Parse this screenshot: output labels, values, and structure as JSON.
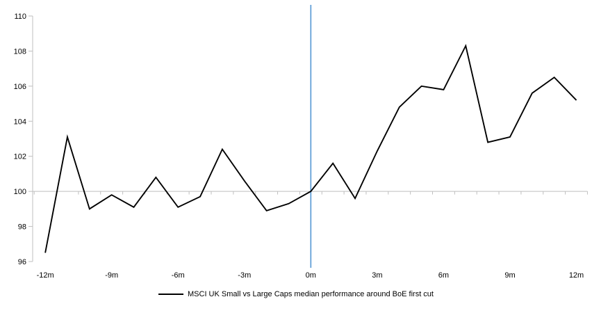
{
  "chart_data": {
    "type": "line",
    "title": "",
    "x": [
      -12,
      -11,
      -10,
      -9,
      -8,
      -7,
      -6,
      -5,
      -4,
      -3,
      -2,
      -1,
      0,
      1,
      2,
      3,
      4,
      5,
      6,
      7,
      8,
      9,
      10,
      11,
      12
    ],
    "series": [
      {
        "name": "MSCI UK Small vs Large Caps median performance around BoE first cut",
        "color": "#000000",
        "values": [
          96.5,
          103.1,
          99.0,
          99.8,
          99.1,
          100.8,
          99.1,
          99.7,
          102.4,
          100.6,
          98.9,
          99.3,
          100.0,
          101.6,
          99.6,
          102.3,
          104.8,
          106.0,
          105.8,
          108.3,
          102.8,
          103.1,
          105.6,
          106.5,
          105.2
        ]
      }
    ],
    "x_ticks": [
      {
        "m": -12,
        "label": "-12m"
      },
      {
        "m": -9,
        "label": "-9m"
      },
      {
        "m": -6,
        "label": "-6m"
      },
      {
        "m": -3,
        "label": "-3m"
      },
      {
        "m": 0,
        "label": "0m"
      },
      {
        "m": 3,
        "label": "3m"
      },
      {
        "m": 6,
        "label": "6m"
      },
      {
        "m": 9,
        "label": "9m"
      },
      {
        "m": 12,
        "label": "12m"
      }
    ],
    "y_ticks": [
      96,
      98,
      100,
      102,
      104,
      106,
      108,
      110
    ],
    "ylim": [
      96,
      110
    ],
    "baseline_y": 100,
    "event_line_x": 0,
    "grid": "off",
    "legend_position": "bottom-center",
    "legend_label": "MSCI UK Small vs Large Caps median performance around BoE first cut",
    "colors": {
      "series_line": "#000000",
      "event_line": "#5B9BD5",
      "baseline": "#BFBFBF",
      "axis": "#BFBFBF",
      "tick_text": "#000000"
    }
  }
}
